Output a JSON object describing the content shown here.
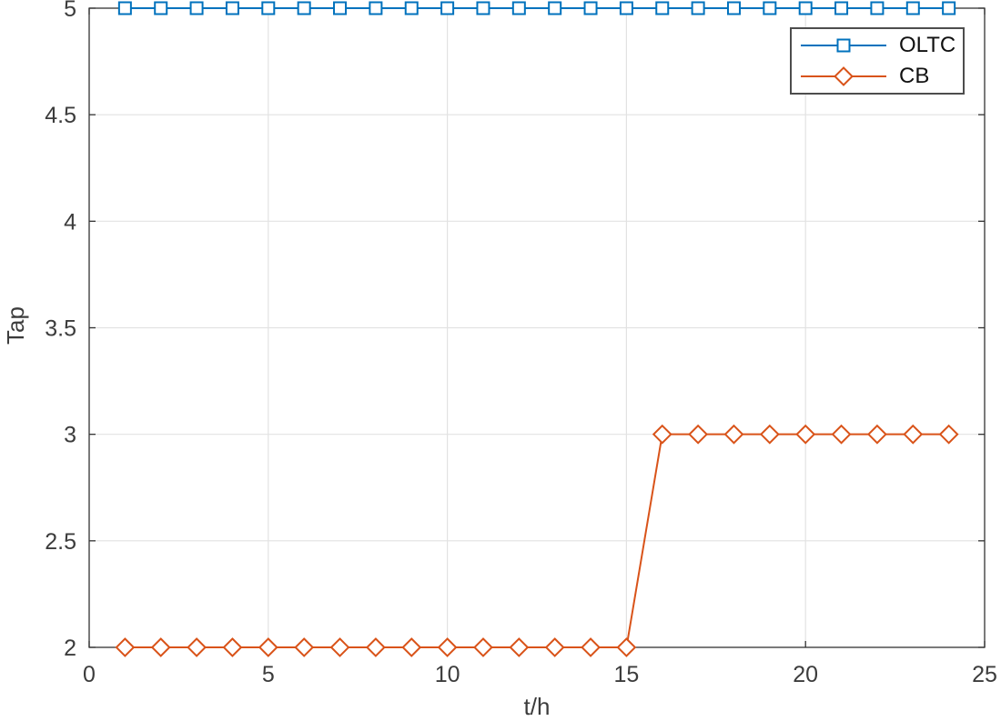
{
  "chart_data": {
    "type": "line",
    "title": "",
    "xlabel": "t/h",
    "ylabel": "Tap",
    "xlim": [
      0,
      25
    ],
    "ylim": [
      2,
      5
    ],
    "x_ticks": [
      0,
      5,
      10,
      15,
      20,
      25
    ],
    "y_ticks": [
      2,
      2.5,
      3,
      3.5,
      4,
      4.5,
      5
    ],
    "grid": true,
    "legend_position": "top-right",
    "x": [
      1,
      2,
      3,
      4,
      5,
      6,
      7,
      8,
      9,
      10,
      11,
      12,
      13,
      14,
      15,
      16,
      17,
      18,
      19,
      20,
      21,
      22,
      23,
      24
    ],
    "series": [
      {
        "name": "OLTC",
        "color": "#0072BD",
        "marker": "square",
        "values": [
          5,
          5,
          5,
          5,
          5,
          5,
          5,
          5,
          5,
          5,
          5,
          5,
          5,
          5,
          5,
          5,
          5,
          5,
          5,
          5,
          5,
          5,
          5,
          5
        ]
      },
      {
        "name": "CB",
        "color": "#D95319",
        "marker": "diamond",
        "values": [
          2,
          2,
          2,
          2,
          2,
          2,
          2,
          2,
          2,
          2,
          2,
          2,
          2,
          2,
          2,
          3,
          3,
          3,
          3,
          3,
          3,
          3,
          3,
          3
        ]
      }
    ]
  },
  "colors": {
    "background": "#FFFFFF",
    "axis": "#333333",
    "grid": "#E2E2E2",
    "tick_label": "#3C3C3C",
    "legend_border": "#4D4D4D",
    "legend_text": "#111111",
    "marker_fill": "#FFFFFF"
  }
}
